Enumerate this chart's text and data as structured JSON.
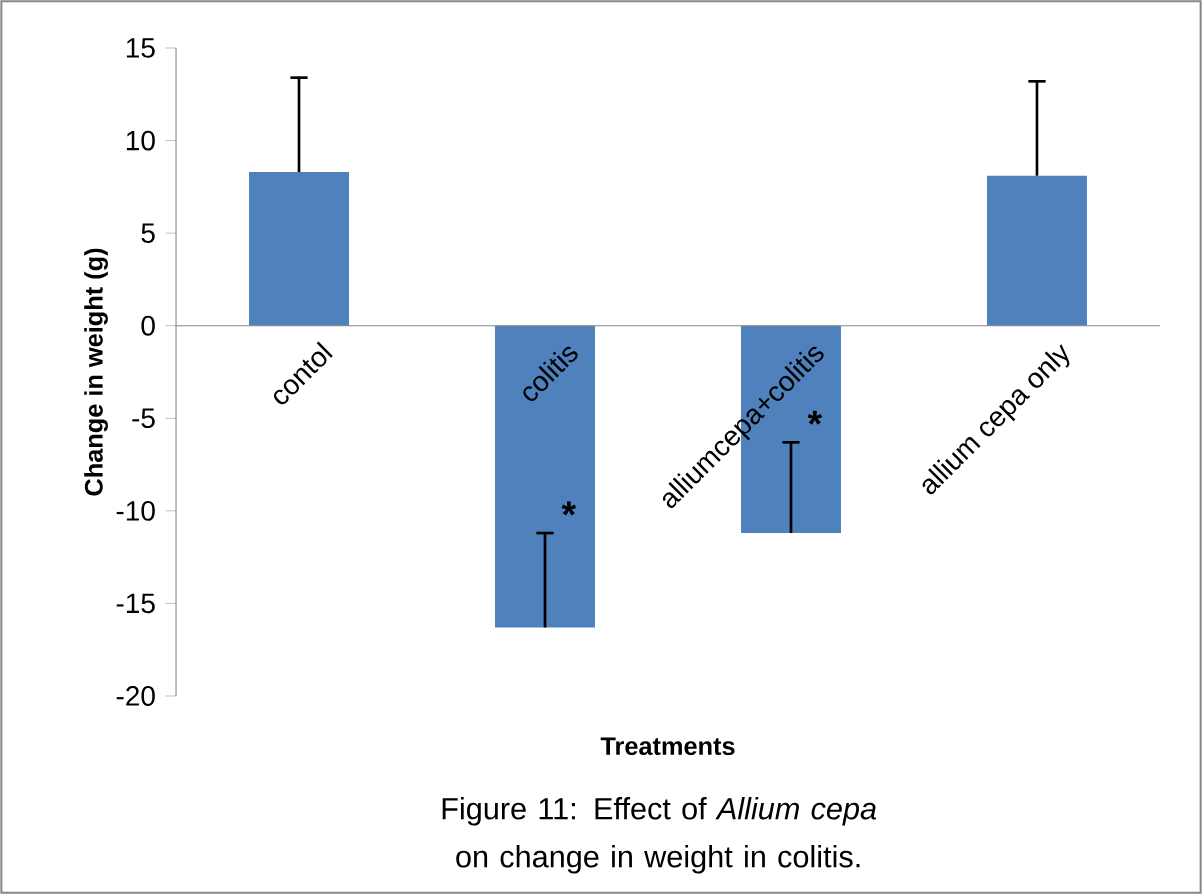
{
  "chart_data": {
    "type": "bar",
    "title": "Figure 11: Effect of *Allium cepa* on change in weight in colitis.",
    "xlabel": "Treatments",
    "ylabel": "Change in weight (g)",
    "categories": [
      "contol",
      "colitis",
      "alliumcepa+colitis",
      "allium cepa only"
    ],
    "values": [
      8.3,
      -16.3,
      -11.2,
      8.1
    ],
    "color": "#4f81bd",
    "errors": [
      [
        8.3,
        13.4
      ],
      [
        -16.3,
        -11.2
      ],
      [
        -11.2,
        -6.3
      ],
      [
        8.1,
        13.2
      ]
    ],
    "ylim": [
      -20,
      15
    ],
    "yticks": [
      -20,
      -15,
      -10,
      -5,
      0,
      5,
      10,
      15
    ],
    "annotations": [
      "*",
      "*"
    ],
    "grid": false
  }
}
